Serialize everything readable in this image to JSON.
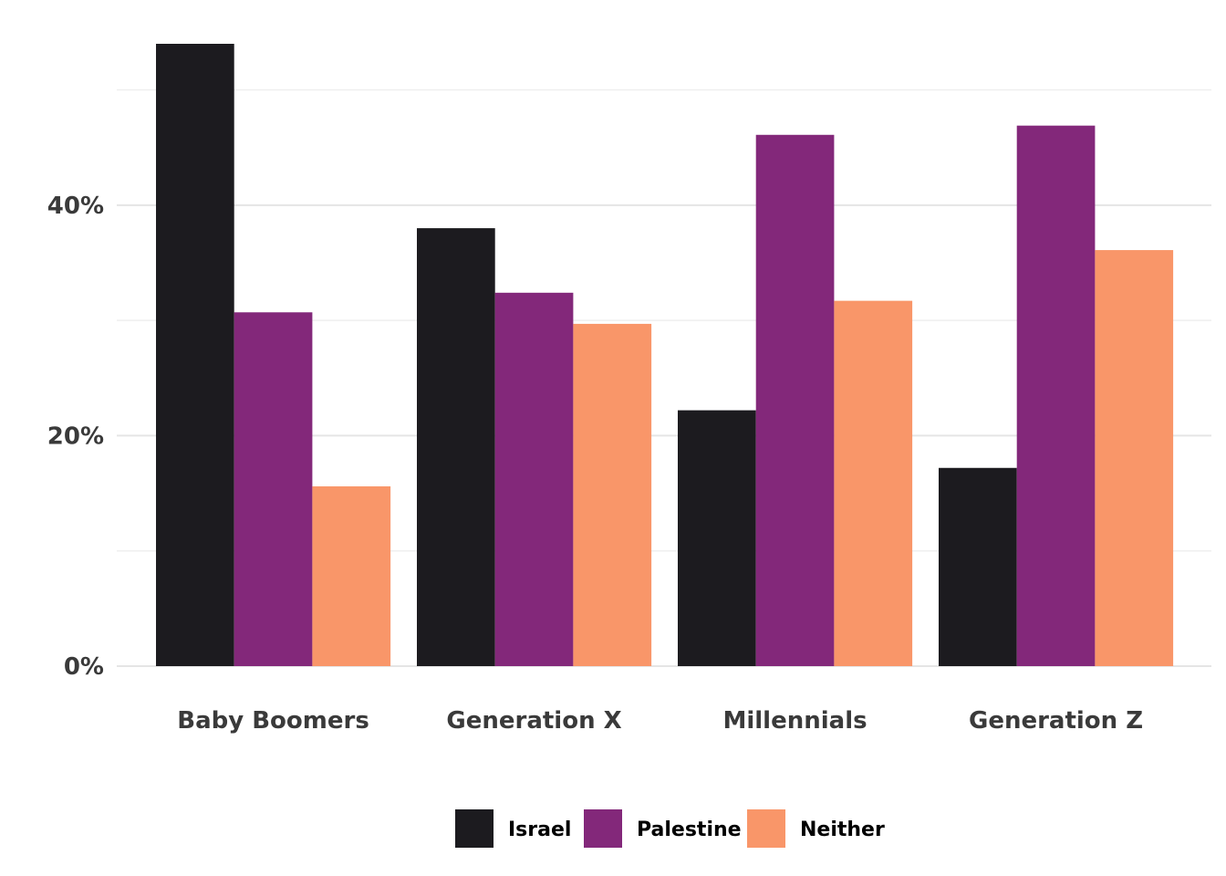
{
  "chart_data": {
    "type": "bar",
    "title": "",
    "xlabel": "",
    "ylabel": "",
    "categories": [
      "Baby Boomers",
      "Generation X",
      "Millennials",
      "Generation Z"
    ],
    "series": [
      {
        "name": "Israel",
        "color": "#1c1b1f",
        "values": [
          54,
          38,
          22.2,
          17.2
        ]
      },
      {
        "name": "Palestine",
        "color": "#83287a",
        "values": [
          30.7,
          32.4,
          46.1,
          46.9
        ]
      },
      {
        "name": "Neither",
        "color": "#f99669",
        "values": [
          15.6,
          29.7,
          31.7,
          36.1
        ]
      }
    ],
    "ylim": [
      0,
      54
    ],
    "yticks": [
      0,
      20,
      40
    ],
    "ytick_labels": [
      "0%",
      "20%",
      "40%"
    ],
    "minor_gridlines": [
      10,
      30,
      50
    ],
    "grid": true,
    "legend_position": "bottom"
  }
}
